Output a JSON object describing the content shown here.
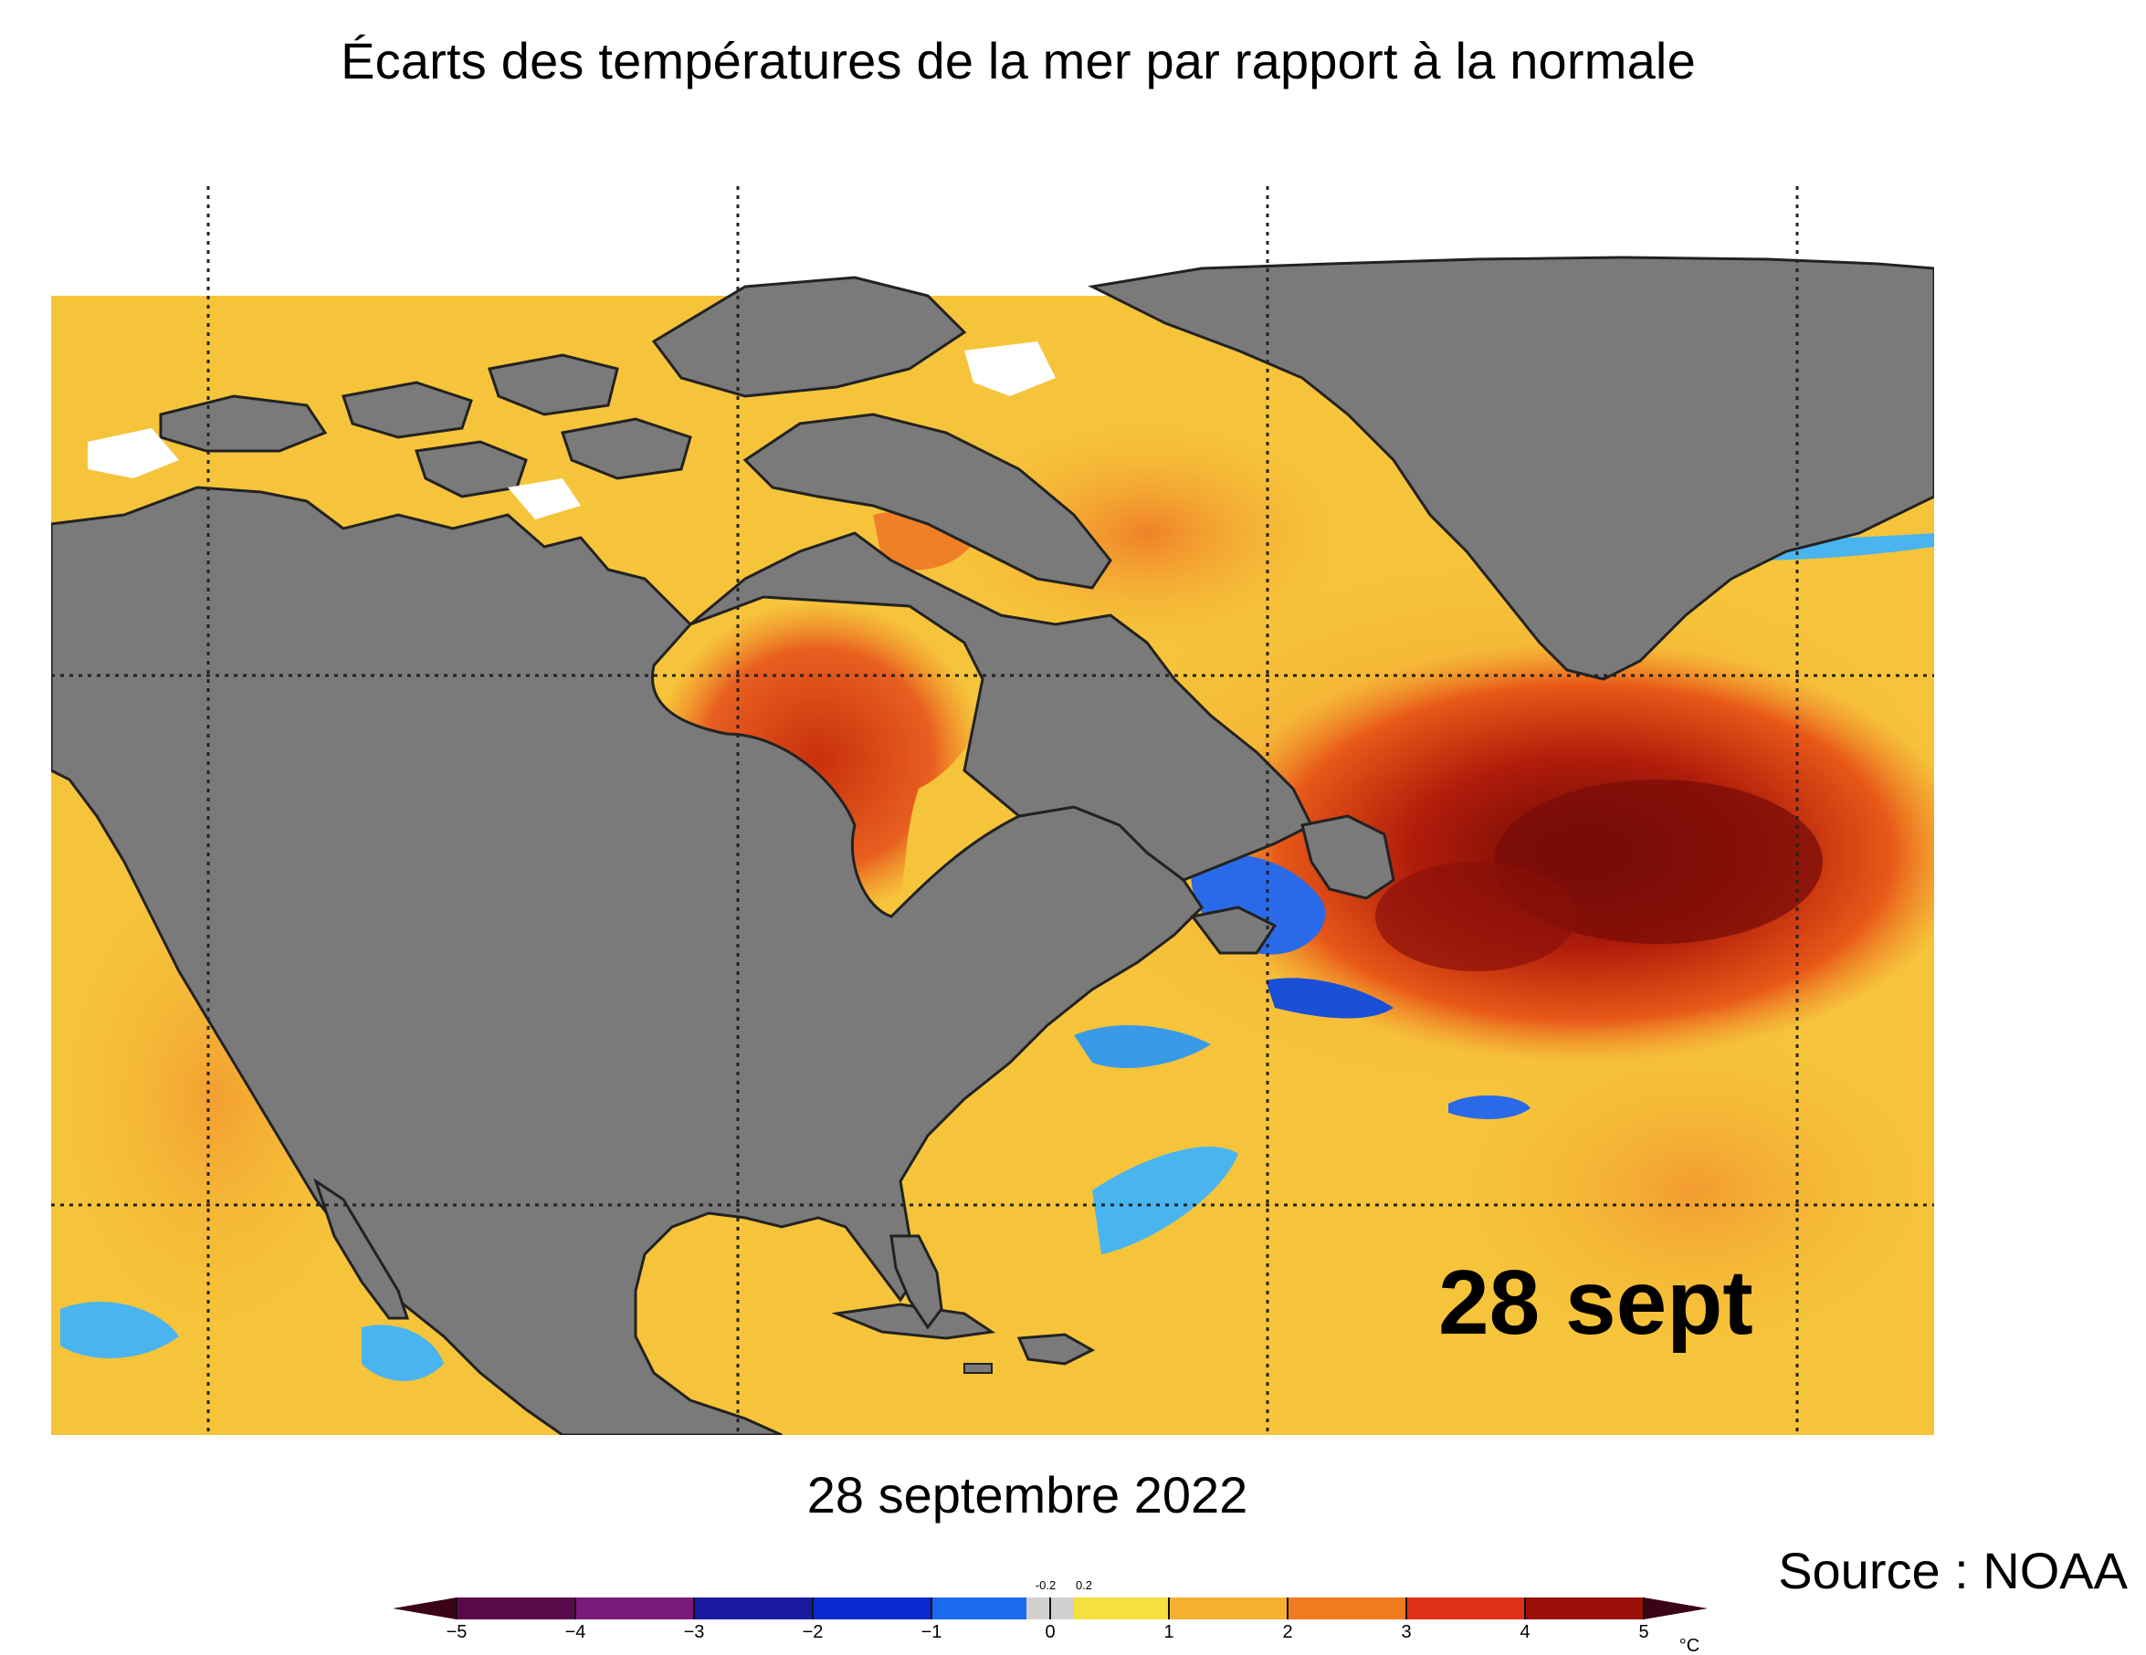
{
  "title": "Écarts des températures de la mer par rapport à la normale",
  "map": {
    "overlay_label": "28 sept",
    "date_caption": "28 septembre 2022",
    "source": "Source : NOAA"
  },
  "colorbar": {
    "unit": "°C",
    "ticks": [
      "−5",
      "−4",
      "−3",
      "−2",
      "−1",
      "0",
      "1",
      "2",
      "3",
      "4",
      "5"
    ],
    "small_labels": [
      "-0.2",
      "0.2"
    ],
    "colors": {
      "extend_low": "#3a0318",
      "extend_high": "#3a0318",
      "bins": [
        "#5a0a4a",
        "#7a1a7a",
        "#3a2aa8",
        "#1a1aa0",
        "#0a2ad0",
        "#1a6af0",
        "#3ac8f5",
        "#d0d0d0",
        "#f5e040",
        "#f5b030",
        "#f07a20",
        "#e03018",
        "#9a1008"
      ]
    }
  },
  "colors": {
    "land": "#7a7a7a",
    "sea_base": "#f6c43a",
    "warm": "#f08028",
    "hot": "#c8240c",
    "very_hot": "#7a0c08",
    "cold": "#2a6ae8",
    "ice": "#ffffff"
  }
}
